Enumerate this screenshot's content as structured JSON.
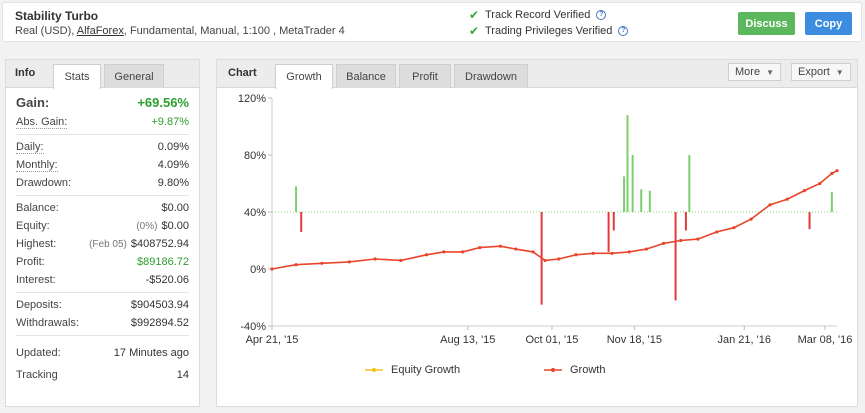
{
  "header": {
    "system_name": "Stability Turbo",
    "desc_prefix": "Real (USD), ",
    "broker": "AlfaForex",
    "desc_suffix": ", Fundamental, Manual, 1:100 , MetaTrader 4",
    "verified_track_record": "Track Record Verified",
    "verified_trading_privileges": "Trading Privileges Verified",
    "discuss_label": "Discuss",
    "copy_label": "Copy"
  },
  "info": {
    "panel_title": "Info",
    "tabs": [
      "Stats",
      "General"
    ],
    "active_tab": "Stats",
    "gain_label": "Gain:",
    "gain_value": "+69.56%",
    "abs_gain_label": "Abs. Gain:",
    "abs_gain_value": "+9.87%",
    "daily_label": "Daily:",
    "daily_value": "0.09%",
    "monthly_label": "Monthly:",
    "monthly_value": "4.09%",
    "drawdown_label": "Drawdown:",
    "drawdown_value": "9.80%",
    "balance_label": "Balance:",
    "balance_value": "$0.00",
    "equity_label": "Equity:",
    "equity_note": "(0%)",
    "equity_value": "$0.00",
    "highest_label": "Highest:",
    "highest_note": "(Feb 05)",
    "highest_value": "$408752.94",
    "profit_label": "Profit:",
    "profit_value": "$89186.72",
    "interest_label": "Interest:",
    "interest_value": "-$520.06",
    "deposits_label": "Deposits:",
    "deposits_value": "$904503.94",
    "withdrawals_label": "Withdrawals:",
    "withdrawals_value": "$992894.52",
    "updated_label": "Updated:",
    "updated_value": "17 Minutes ago",
    "tracking_label": "Tracking",
    "tracking_value": "14"
  },
  "chart_panel": {
    "title": "Chart",
    "tabs": [
      "Growth",
      "Balance",
      "Profit",
      "Drawdown"
    ],
    "active_tab": "Growth",
    "more_label": "More",
    "export_label": "Export",
    "legend_equity": "Equity Growth",
    "legend_growth": "Growth"
  },
  "colors": {
    "growth_line": "#e8452c",
    "equity_line": "#f0c419",
    "positive_bar": "#7ccf6e",
    "negative_bar": "#e23a3a",
    "gain_green": "#2e9d2e"
  },
  "chart_data": {
    "type": "line",
    "title": "",
    "xlabel": "",
    "ylabel": "",
    "ylim": [
      -40,
      120
    ],
    "y_ticks": [
      "120%",
      "80%",
      "40%",
      "0%",
      "-40%"
    ],
    "x_ticks": [
      "Apr 21, '15",
      "Aug 13, '15",
      "Oct 01, '15",
      "Nov 18, '15",
      "Jan 21, '16",
      "Mar 08, '16"
    ],
    "x_range": [
      "2015-04-21",
      "2016-03-15"
    ],
    "series": [
      {
        "name": "Growth",
        "x": [
          "2015-04-21",
          "2015-05-05",
          "2015-05-20",
          "2015-06-05",
          "2015-06-20",
          "2015-07-05",
          "2015-07-20",
          "2015-07-30",
          "2015-08-10",
          "2015-08-20",
          "2015-09-01",
          "2015-09-10",
          "2015-09-20",
          "2015-09-27",
          "2015-10-05",
          "2015-10-15",
          "2015-10-25",
          "2015-11-05",
          "2015-11-15",
          "2015-11-25",
          "2015-12-05",
          "2015-12-15",
          "2015-12-25",
          "2016-01-05",
          "2016-01-15",
          "2016-01-25",
          "2016-02-05",
          "2016-02-15",
          "2016-02-25",
          "2016-03-05",
          "2016-03-12",
          "2016-03-15"
        ],
        "values": [
          0,
          3,
          4,
          5,
          7,
          6,
          10,
          12,
          12,
          15,
          16,
          14,
          12,
          6,
          7,
          10,
          11,
          11,
          12,
          14,
          18,
          20,
          21,
          26,
          29,
          35,
          45,
          49,
          55,
          60,
          67,
          69
        ]
      }
    ],
    "bars": {
      "positive": [
        {
          "x": "2015-05-05",
          "y": 58
        },
        {
          "x": "2015-11-12",
          "y": 65
        },
        {
          "x": "2015-11-14",
          "y": 108
        },
        {
          "x": "2015-11-17",
          "y": 80
        },
        {
          "x": "2015-11-22",
          "y": 56
        },
        {
          "x": "2015-11-27",
          "y": 55
        },
        {
          "x": "2015-12-20",
          "y": 80
        },
        {
          "x": "2016-03-12",
          "y": 54
        }
      ],
      "negative": [
        {
          "x": "2015-05-08",
          "y": 26
        },
        {
          "x": "2015-09-25",
          "y": -25
        },
        {
          "x": "2015-11-03",
          "y": 12
        },
        {
          "x": "2015-11-06",
          "y": 27
        },
        {
          "x": "2015-12-12",
          "y": -22
        },
        {
          "x": "2015-12-18",
          "y": 27
        },
        {
          "x": "2016-02-28",
          "y": 28
        }
      ]
    },
    "grid": false,
    "legend": "bottom"
  }
}
